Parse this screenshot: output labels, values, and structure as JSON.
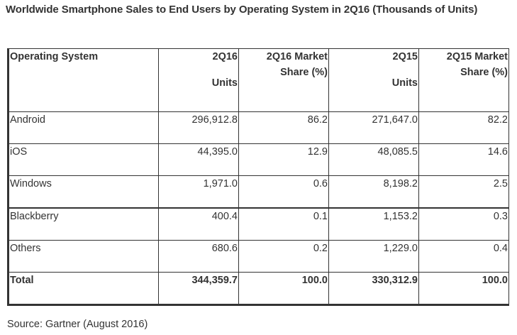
{
  "title": "Worldwide Smartphone Sales to End Users by Operating System in 2Q16 (Thousands of Units)",
  "table": {
    "headers": [
      {
        "line1": "Operating System",
        "line2": ""
      },
      {
        "line1": "2Q16",
        "line2": "Units"
      },
      {
        "line1": "2Q16 Market Share (%)",
        "line2": ""
      },
      {
        "line1": "2Q15",
        "line2": "Units"
      },
      {
        "line1": "2Q15 Market Share (%)",
        "line2": ""
      }
    ],
    "rows": [
      {
        "os": "Android",
        "units_2q16": "296,912.8",
        "share_2q16": "86.2",
        "units_2q15": "271,647.0",
        "share_2q15": "82.2"
      },
      {
        "os": "iOS",
        "units_2q16": "44,395.0",
        "share_2q16": "12.9",
        "units_2q15": "48,085.5",
        "share_2q15": "14.6"
      },
      {
        "os": "Windows",
        "units_2q16": "1,971.0",
        "share_2q16": "0.6",
        "units_2q15": "8,198.2",
        "share_2q15": "2.5"
      },
      {
        "os": "Blackberry",
        "units_2q16": "400.4",
        "share_2q16": "0.1",
        "units_2q15": "1,153.2",
        "share_2q15": "0.3"
      },
      {
        "os": "Others",
        "units_2q16": "680.6",
        "share_2q16": "0.2",
        "units_2q15": "1,229.0",
        "share_2q15": "0.4"
      }
    ],
    "total": {
      "os": "Total",
      "units_2q16": "344,359.7",
      "share_2q16": "100.0",
      "units_2q15": "330,312.9",
      "share_2q15": "100.0"
    }
  },
  "source": "Source: Gartner (August 2016)"
}
